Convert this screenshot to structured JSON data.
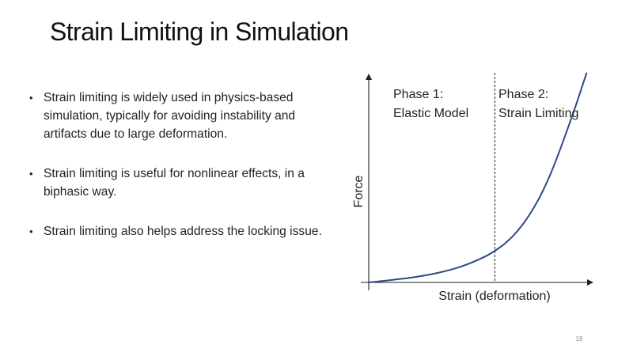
{
  "slide": {
    "title": "Strain Limiting in Simulation",
    "bullets": [
      "Strain limiting is widely used in physics-based simulation, typically for avoiding instability and artifacts due to large deformation.",
      "Strain limiting is useful for nonlinear effects, in a biphasic way.",
      "Strain limiting also helps address the locking issue."
    ],
    "bullet_icon": "bullet-dot",
    "page_number": "19"
  },
  "chart_data": {
    "type": "line",
    "title": "",
    "xlabel": "Strain (deformation)",
    "ylabel": "Force",
    "x_ticks": [],
    "y_ticks": [],
    "series": [
      {
        "name": "",
        "color": "#2e4a87",
        "x": [
          0.0,
          0.1,
          0.2,
          0.3,
          0.4,
          0.5,
          0.55,
          0.6,
          0.65,
          0.7,
          0.75,
          0.8,
          0.85,
          0.9,
          0.95
        ],
        "y": [
          0.0,
          0.012,
          0.026,
          0.046,
          0.076,
          0.122,
          0.154,
          0.195,
          0.252,
          0.328,
          0.425,
          0.548,
          0.695,
          0.852,
          1.02
        ]
      }
    ],
    "phase_divider_x": 0.55,
    "divider_style": "dashed",
    "annotations": [
      {
        "lines": [
          "Phase 1:",
          "Elastic Model"
        ]
      },
      {
        "lines": [
          "Phase 2:",
          "Strain Limiting"
        ]
      }
    ],
    "xlim": [
      0,
      1
    ],
    "ylim": [
      0,
      1
    ],
    "grid": false,
    "legend": "none"
  }
}
